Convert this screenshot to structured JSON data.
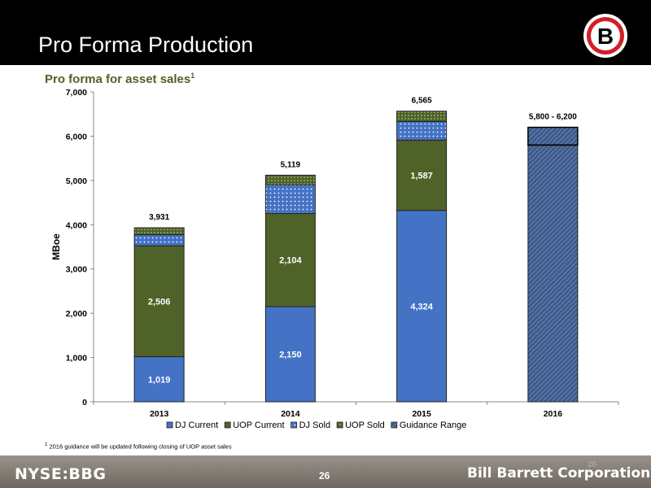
{
  "header": {
    "title": "Pro Forma Production",
    "logo_letter": "B"
  },
  "subtitle": {
    "text": "Pro forma for asset sales",
    "footnote_marker": "1"
  },
  "chart_data": {
    "type": "bar",
    "stacked": true,
    "categories": [
      "2013",
      "2014",
      "2015",
      "2016"
    ],
    "ylabel": "MBoe",
    "xlabel": "",
    "ylim": [
      0,
      7000
    ],
    "yticks": [
      "0",
      "1,000",
      "2,000",
      "3,000",
      "4,000",
      "5,000",
      "6,000",
      "7,000"
    ],
    "ytick_values": [
      0,
      1000,
      2000,
      3000,
      4000,
      5000,
      6000,
      7000
    ],
    "grid": false,
    "legend_position": "bottom",
    "series": [
      {
        "name": "DJ Current",
        "values": [
          1019,
          2150,
          4324,
          null
        ],
        "labels": [
          "1,019",
          "2,150",
          "4,324",
          ""
        ],
        "color": "#4472c4",
        "pattern": "solid"
      },
      {
        "name": "UOP Current",
        "values": [
          2506,
          2104,
          1587,
          null
        ],
        "labels": [
          "2,506",
          "2,104",
          "1,587",
          ""
        ],
        "color": "#4f6228",
        "pattern": "solid"
      },
      {
        "name": "DJ Sold",
        "values": [
          250,
          650,
          420,
          null
        ],
        "labels": [
          "",
          "",
          "",
          ""
        ],
        "color": "#4472c4",
        "pattern": "dots"
      },
      {
        "name": "UOP Sold",
        "values": [
          156,
          215,
          234,
          null
        ],
        "labels": [
          "",
          "",
          "",
          ""
        ],
        "color": "#4f6228",
        "pattern": "dots"
      },
      {
        "name": "Guidance Range",
        "values": [
          null,
          null,
          null,
          5800
        ],
        "range_extent": [
          null,
          null,
          null,
          400
        ],
        "labels": [
          "",
          "",
          "",
          ""
        ],
        "color": "#3d5a8a",
        "pattern": "hatch"
      }
    ],
    "totals": [
      "3,931",
      "5,119",
      "6,565",
      "5,800 - 6,200"
    ]
  },
  "footnote": {
    "marker": "1",
    "text": "2016 guidance will be updated following closing of UOP asset sales"
  },
  "footer": {
    "ticker": "NYSE:BBG",
    "page_number": "26",
    "page_number_ghost": "26",
    "company": "Bill Barrett Corporation"
  },
  "colors": {
    "header_bg": "#000000",
    "subtitle": "#4f6228",
    "dj_blue": "#4472c4",
    "uop_green": "#4f6228",
    "footer_bg": "#857e76"
  }
}
